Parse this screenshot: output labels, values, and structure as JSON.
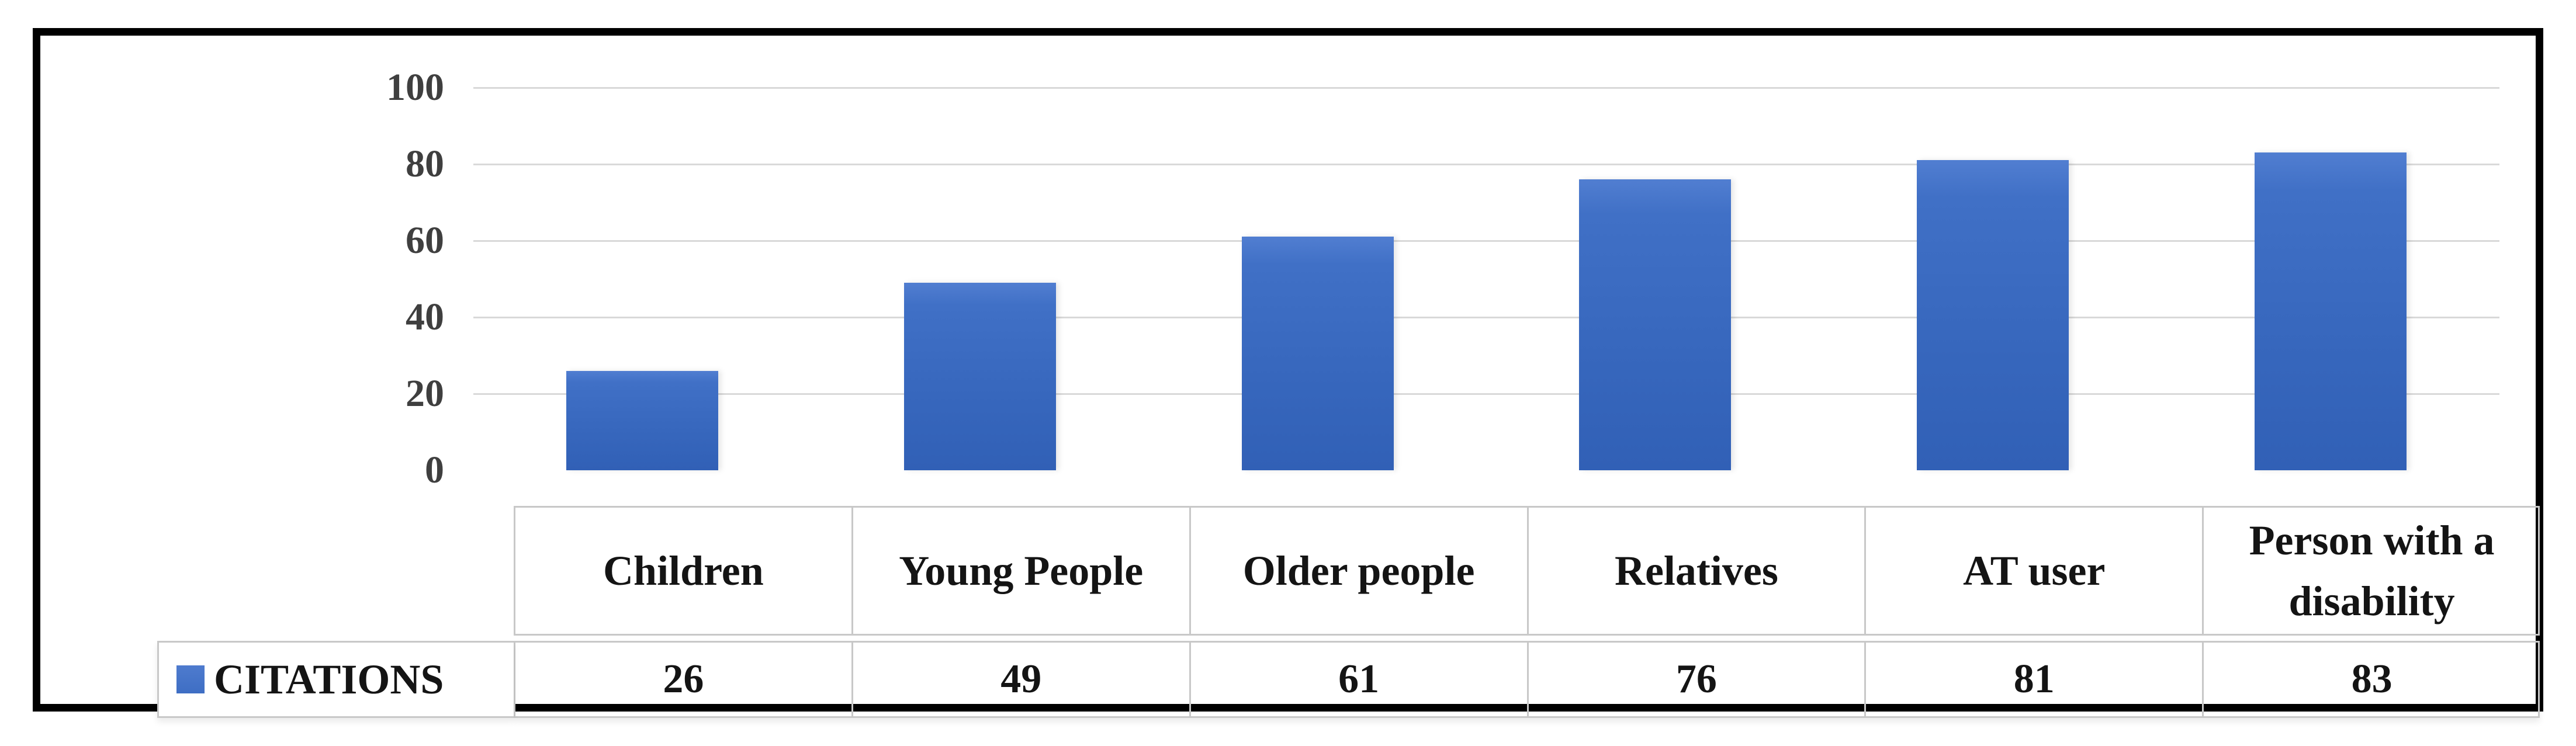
{
  "figure": {
    "type": "framed chart figure",
    "background": "#FFFFFF",
    "frame_border_color": "#000000"
  },
  "chart_data": {
    "type": "bar",
    "title": "",
    "xlabel": "",
    "ylabel": "",
    "categories": [
      "Children",
      "Young People",
      "Older people",
      "Relatives",
      "AT user",
      "Person with a disability"
    ],
    "series": [
      {
        "name": "CITATIONS",
        "values": [
          26,
          49,
          61,
          76,
          81,
          83
        ]
      }
    ],
    "ylim": [
      0,
      100
    ],
    "yticks": [
      100,
      80,
      60,
      40,
      20,
      0
    ],
    "ytick_labels": [
      "100",
      "80",
      "60",
      "40",
      "20",
      "0"
    ],
    "grid": true,
    "gridline_color": "#D9D9D9",
    "bar_color": "#4472C4",
    "legend_position": "bottom-left table row header",
    "data_table": {
      "shown": true,
      "row_header": "CITATIONS",
      "row_values": [
        "26",
        "49",
        "61",
        "76",
        "81",
        "83"
      ]
    }
  },
  "colors": {
    "bar_gradient_top": "#517ED1",
    "bar_gradient_bottom": "#3160B6",
    "axis_text": "#3F3F3F",
    "table_text": "#141414",
    "table_border": "#C8C8C8",
    "gridline": "#D9D9D9",
    "frame": "#000000"
  }
}
